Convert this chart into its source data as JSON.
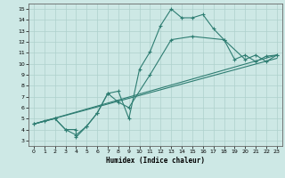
{
  "xlabel": "Humidex (Indice chaleur)",
  "xlim": [
    -0.5,
    23.5
  ],
  "ylim": [
    2.5,
    15.5
  ],
  "xticks": [
    0,
    1,
    2,
    3,
    4,
    5,
    6,
    7,
    8,
    9,
    10,
    11,
    12,
    13,
    14,
    15,
    16,
    17,
    18,
    19,
    20,
    21,
    22,
    23
  ],
  "yticks": [
    3,
    4,
    5,
    6,
    7,
    8,
    9,
    10,
    11,
    12,
    13,
    14,
    15
  ],
  "bg_color": "#cde8e5",
  "line_color": "#2e7d72",
  "grid_color": "#aed0cc",
  "line1_x": [
    0,
    1,
    2,
    3,
    4,
    4,
    5,
    6,
    7,
    8,
    9,
    10,
    11,
    12,
    13,
    14,
    15,
    16,
    17,
    18,
    19,
    20,
    21,
    22,
    23
  ],
  "line1_y": [
    4.5,
    4.8,
    5.0,
    4.0,
    4.0,
    3.3,
    4.3,
    5.5,
    7.3,
    7.5,
    5.0,
    9.5,
    11.1,
    13.5,
    15.0,
    14.2,
    14.2,
    14.5,
    13.2,
    12.2,
    10.4,
    10.8,
    10.2,
    10.7,
    10.8
  ],
  "line2_x": [
    0,
    2,
    3,
    4,
    5,
    6,
    7,
    8,
    9,
    11,
    13,
    15,
    18,
    20,
    21,
    22,
    23
  ],
  "line2_y": [
    4.5,
    5.0,
    4.0,
    3.5,
    4.3,
    5.5,
    7.3,
    6.5,
    6.0,
    9.0,
    12.2,
    12.5,
    12.2,
    10.4,
    10.8,
    10.2,
    10.8
  ],
  "line3_x": [
    0,
    23
  ],
  "line3_y": [
    4.5,
    10.8
  ],
  "line4_x": [
    0,
    23
  ],
  "line4_y": [
    4.5,
    10.5
  ]
}
